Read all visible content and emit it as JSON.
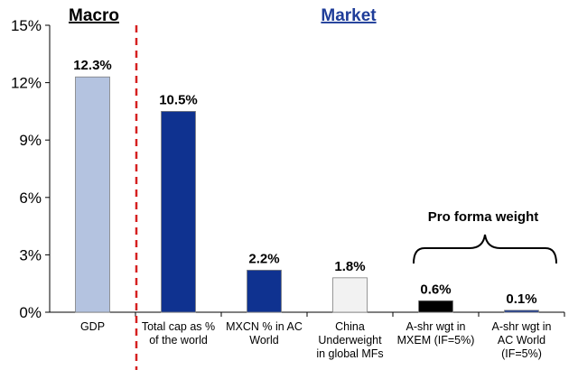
{
  "chart_data": {
    "type": "bar",
    "categories": [
      [
        "GDP"
      ],
      [
        "Total  cap as %",
        "of the world"
      ],
      [
        "MXCN % in AC",
        "World"
      ],
      [
        "China",
        "Underweight",
        "in global MFs"
      ],
      [
        "A-shr wgt in",
        "MXEM (IF=5%)"
      ],
      [
        "A-shr wgt in",
        "AC World",
        "(IF=5%)"
      ]
    ],
    "values": [
      12.3,
      10.5,
      2.2,
      1.8,
      0.6,
      0.1
    ],
    "data_labels": [
      "12.3%",
      "10.5%",
      "2.2%",
      "1.8%",
      "0.6%",
      "0.1%"
    ],
    "bar_colors": [
      "#b4c3e0",
      "#0f3290",
      "#0f3290",
      "#f2f2f2",
      "#000000",
      "#0f3290"
    ],
    "ylim": [
      0,
      15
    ],
    "yticks": [
      {
        "value": 0,
        "label": "0%"
      },
      {
        "value": 3,
        "label": "3%"
      },
      {
        "value": 6,
        "label": "6%"
      },
      {
        "value": 9,
        "label": "9%"
      },
      {
        "value": 12,
        "label": "12%"
      },
      {
        "value": 15,
        "label": "15%"
      }
    ],
    "grid": false,
    "section_labels": {
      "macro": "Macro",
      "market": "Market"
    },
    "annotation": "Pro forma weight",
    "colors": {
      "divider": "#d62020",
      "market_title": "#1f3d99"
    }
  }
}
